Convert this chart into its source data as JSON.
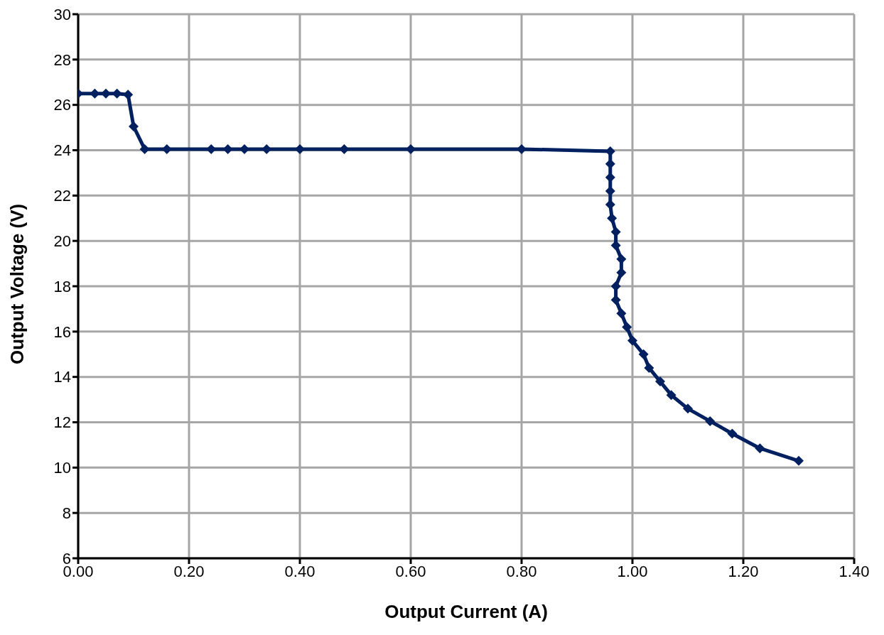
{
  "chart_data": {
    "type": "line",
    "xlabel": "Output Current (A)",
    "ylabel": "Output Voltage (V)",
    "x": [
      0,
      0.03,
      0.05,
      0.07,
      0.09,
      0.1,
      0.12,
      0.16,
      0.24,
      0.27,
      0.3,
      0.34,
      0.4,
      0.48,
      0.6,
      0.8,
      0.96,
      0.96,
      0.96,
      0.96,
      0.96,
      0.963,
      0.97,
      0.97,
      0.98,
      0.98,
      0.97,
      0.97,
      0.98,
      0.99,
      1.0,
      1.02,
      1.03,
      1.05,
      1.07,
      1.1,
      1.14,
      1.18,
      1.23,
      1.3
    ],
    "series": [
      {
        "color": "#002060",
        "values": [
          26.5,
          26.5,
          26.5,
          26.5,
          26.45,
          25.05,
          24.05,
          24.05,
          24.05,
          24.05,
          24.05,
          24.05,
          24.05,
          24.05,
          24.05,
          24.05,
          23.95,
          23.4,
          22.8,
          22.2,
          21.6,
          21.0,
          20.4,
          19.8,
          19.2,
          18.6,
          18.0,
          17.4,
          16.8,
          16.2,
          15.6,
          15.0,
          14.4,
          13.8,
          13.2,
          12.6,
          12.05,
          11.5,
          10.85,
          10.3
        ]
      }
    ],
    "xlim": [
      0,
      1.4
    ],
    "xticks": [
      {
        "value": 0,
        "label": "0.00"
      },
      {
        "value": 0.2,
        "label": "0.20"
      },
      {
        "value": 0.4,
        "label": "0.40"
      },
      {
        "value": 0.6,
        "label": "0.60"
      },
      {
        "value": 0.8,
        "label": "0.80"
      },
      {
        "value": 1,
        "label": "1.00"
      },
      {
        "value": 1.2,
        "label": "1.20"
      },
      {
        "value": 1.4,
        "label": "1.40"
      }
    ],
    "ylim": [
      6,
      30
    ],
    "yticks": [
      6,
      8,
      10,
      12,
      14,
      16,
      18,
      20,
      22,
      24,
      26,
      28,
      30
    ],
    "grid": true,
    "legend": false,
    "marker": "diamond",
    "line_style": "solid"
  }
}
